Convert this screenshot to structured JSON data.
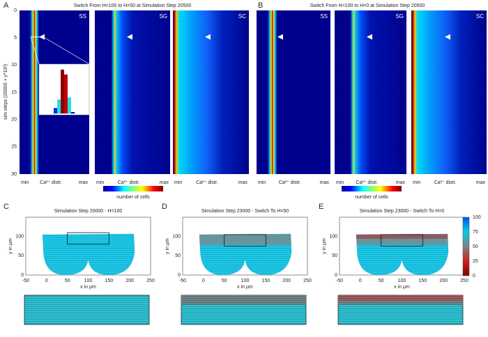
{
  "panels": [
    {
      "label": "A",
      "title": "Switch From H=100 to H=50 at Simulation Step 20500",
      "subplots": [
        "SS",
        "SG",
        "SC"
      ]
    },
    {
      "label": "B",
      "title": "Switch From H=100 to H=0 at Simulation Step 20500",
      "subplots": [
        "SS",
        "SG",
        "SC"
      ]
    },
    {
      "label": "C",
      "title": "Simulation Step 20000 - H=100"
    },
    {
      "label": "D",
      "title": "Simulation Step 23000 - Switch To H=50"
    },
    {
      "label": "E",
      "title": "Simulation Step 23000 - Switch To H=0"
    }
  ],
  "heatmap_axis": {
    "y_label": "sim steps (20000 + y*10²)",
    "y_ticks": [
      "0",
      "5",
      "10",
      "15",
      "20",
      "25",
      "30"
    ],
    "x_labels": [
      "min",
      "Ca²⁺ distr.",
      "max"
    ],
    "colorbar_label": "number of cells"
  },
  "tissue_axis": {
    "x_label": "x in µm",
    "y_label": "y in µm",
    "x_ticks": [
      "-50",
      "0",
      "50",
      "100",
      "150",
      "200",
      "250"
    ],
    "y_ticks": [
      "0",
      "50",
      "100"
    ],
    "colorbar_ticks": [
      "100",
      "75",
      "50",
      "25",
      "0"
    ]
  }
}
